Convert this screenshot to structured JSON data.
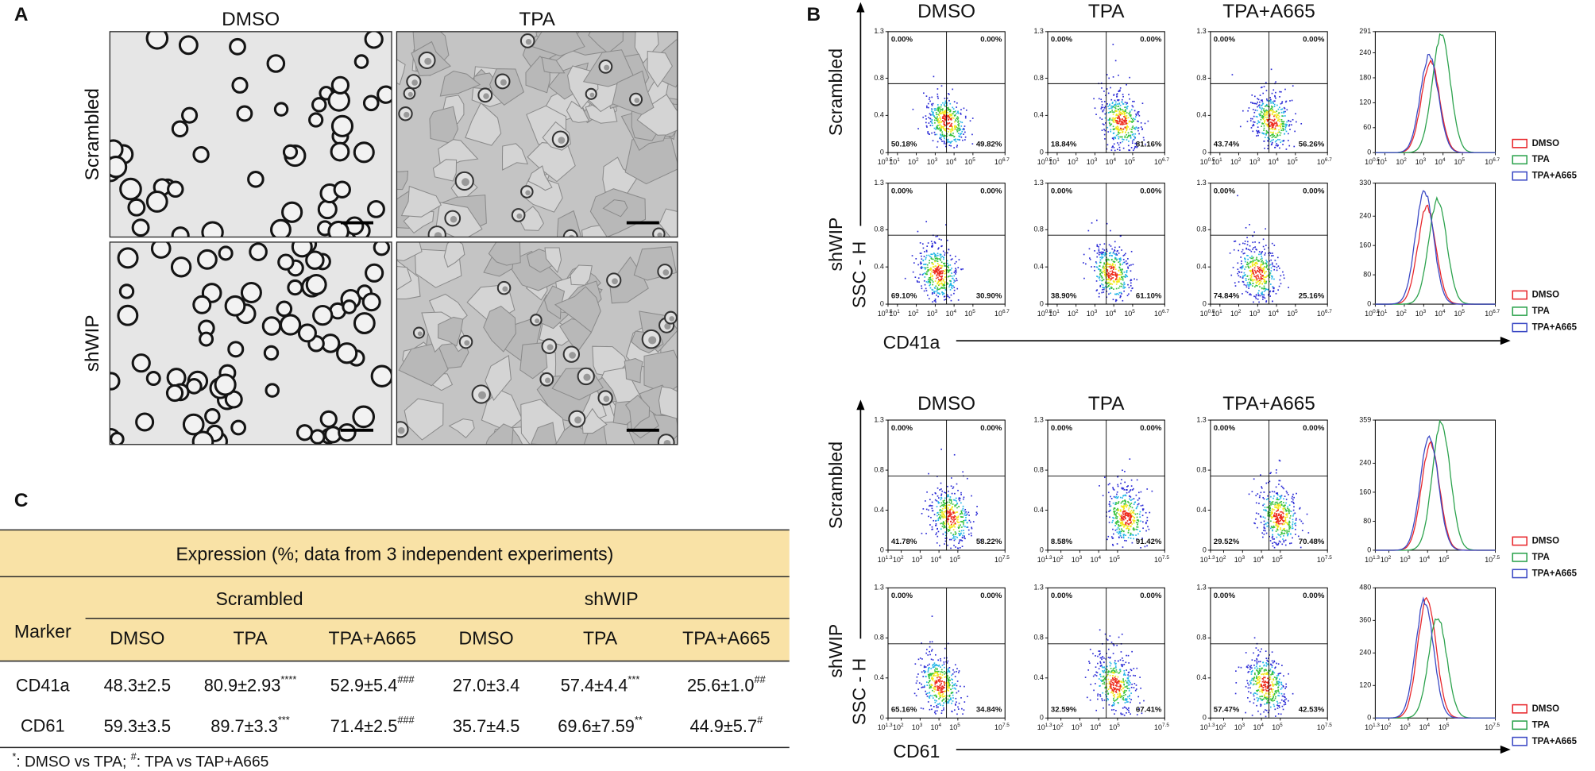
{
  "panel_a": {
    "label": "A",
    "columns": [
      "DMSO",
      "TPA"
    ],
    "rows": [
      "Scrambled",
      "shWIP"
    ]
  },
  "panel_b": {
    "label": "B",
    "blocks": [
      {
        "marker": "CD41a",
        "y_axis": "SSC - H",
        "columns": [
          "DMSO",
          "TPA",
          "TPA+A665"
        ],
        "yticks": [
          0,
          0.4,
          0.8,
          1.3
        ],
        "xticks": [
          {
            "base": "10",
            "exp": "0.5"
          },
          {
            "base": "10",
            "exp": "1"
          },
          {
            "base": "10",
            "exp": "2"
          },
          {
            "base": "10",
            "exp": "3"
          },
          {
            "base": "10",
            "exp": "4"
          },
          {
            "base": "10",
            "exp": "5"
          },
          {
            "base": "10",
            "exp": "6.7"
          }
        ],
        "rows": [
          {
            "name": "Scrambled",
            "hist_yticks": [
              0,
              60,
              120,
              180,
              240,
              291
            ],
            "plots": [
              {
                "quadrants": [
                  "0.00%",
                  "0.00%",
                  "50.18%",
                  "49.82%"
                ]
              },
              {
                "quadrants": [
                  "0.00%",
                  "0.00%",
                  "18.84%",
                  "81.16%"
                ]
              },
              {
                "quadrants": [
                  "0.00%",
                  "0.00%",
                  "43.74%",
                  "56.26%"
                ]
              }
            ]
          },
          {
            "name": "shWIP",
            "hist_yticks": [
              0,
              80,
              160,
              240,
              330
            ],
            "plots": [
              {
                "quadrants": [
                  "0.00%",
                  "0.00%",
                  "69.10%",
                  "30.90%"
                ]
              },
              {
                "quadrants": [
                  "0.00%",
                  "0.00%",
                  "38.90%",
                  "61.10%"
                ]
              },
              {
                "quadrants": [
                  "0.00%",
                  "0.00%",
                  "74.84%",
                  "25.16%"
                ]
              }
            ]
          }
        ]
      },
      {
        "marker": "CD61",
        "y_axis": "SSC - H",
        "columns": [
          "DMSO",
          "TPA",
          "TPA+A665"
        ],
        "yticks": [
          0,
          0.4,
          0.8,
          1.3
        ],
        "xticks": [
          {
            "base": "10",
            "exp": "1.3"
          },
          {
            "base": "10",
            "exp": "2"
          },
          {
            "base": "10",
            "exp": "3"
          },
          {
            "base": "10",
            "exp": "4"
          },
          {
            "base": "10",
            "exp": "5"
          },
          {
            "base": "10",
            "exp": "7.5"
          }
        ],
        "rows": [
          {
            "name": "Scrambled",
            "hist_yticks": [
              0,
              80,
              160,
              240,
              359
            ],
            "plots": [
              {
                "quadrants": [
                  "0.00%",
                  "0.00%",
                  "41.78%",
                  "58.22%"
                ]
              },
              {
                "quadrants": [
                  "0.00%",
                  "0.00%",
                  "8.58%",
                  "91.42%"
                ]
              },
              {
                "quadrants": [
                  "0.00%",
                  "0.00%",
                  "29.52%",
                  "70.48%"
                ]
              }
            ]
          },
          {
            "name": "shWIP",
            "hist_yticks": [
              0,
              120,
              240,
              360,
              480
            ],
            "plots": [
              {
                "quadrants": [
                  "0.00%",
                  "0.00%",
                  "65.16%",
                  "34.84%"
                ]
              },
              {
                "quadrants": [
                  "0.00%",
                  "0.00%",
                  "32.59%",
                  "67.41%"
                ]
              },
              {
                "quadrants": [
                  "0.00%",
                  "0.00%",
                  "57.47%",
                  "42.53%"
                ]
              }
            ]
          }
        ]
      }
    ],
    "legend": [
      {
        "name": "DMSO",
        "color": "#e8262b"
      },
      {
        "name": "TPA",
        "color": "#2ba24c"
      },
      {
        "name": "TPA+A665",
        "color": "#3a48c4"
      }
    ]
  },
  "panel_c": {
    "label": "C",
    "title": "Expression (%; data from 3 independent experiments)",
    "marker_header": "Marker",
    "groups": [
      "Scrambled",
      "shWIP"
    ],
    "conditions": [
      "DMSO",
      "TPA",
      "TPA+A665",
      "DMSO",
      "TPA",
      "TPA+A665"
    ],
    "rows": [
      {
        "marker": "CD41a",
        "cells": [
          {
            "text": "48.3±2.5"
          },
          {
            "text": "80.9±2.93",
            "sup": "****"
          },
          {
            "text": "52.9±5.4",
            "sup": "###"
          },
          {
            "text": "27.0±3.4"
          },
          {
            "text": "57.4±4.4",
            "sup": "***"
          },
          {
            "text": "25.6±1.0",
            "sup": "##"
          }
        ]
      },
      {
        "marker": "CD61",
        "cells": [
          {
            "text": "59.3±3.5"
          },
          {
            "text": "89.7±3.3",
            "sup": "***"
          },
          {
            "text": "71.4±2.5",
            "sup": "###"
          },
          {
            "text": "35.7±4.5"
          },
          {
            "text": "69.6±7.59",
            "sup": "**"
          },
          {
            "text": "44.9±5.7",
            "sup": "#"
          }
        ]
      }
    ],
    "footnote": [
      {
        "sup": "*"
      },
      {
        "text": ": DMSO vs TPA; "
      },
      {
        "sup": "#"
      },
      {
        "text": ": TPA vs TAP+A665"
      }
    ]
  }
}
